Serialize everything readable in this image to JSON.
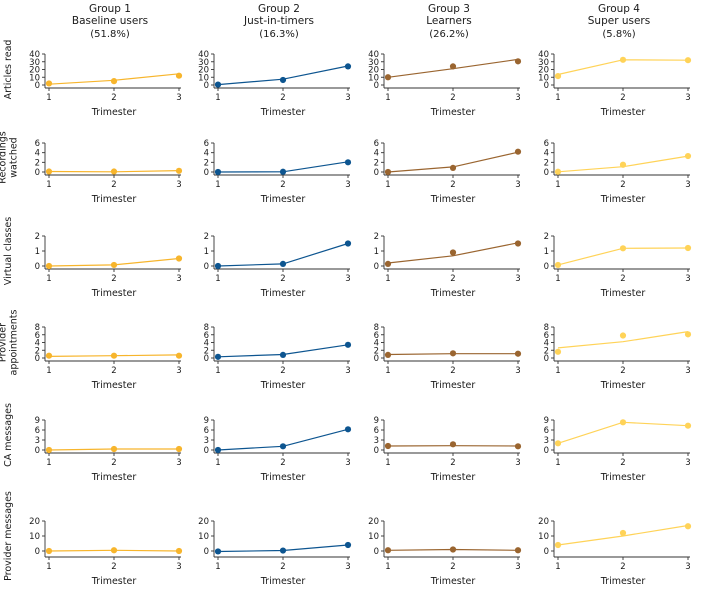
{
  "chart_data": {
    "type": "line",
    "layout": "small-multiples grid (6 metric rows x 4 group columns)",
    "x": [
      "1",
      "2",
      "3"
    ],
    "xlabel": "Trimester",
    "groups": [
      {
        "title": "Group 1",
        "subtitle": "Baseline users",
        "share": "(51.8%)",
        "color": "#F7B52C"
      },
      {
        "title": "Group 2",
        "subtitle": "Just-in-timers",
        "share": "(16.3%)",
        "color": "#0D5590"
      },
      {
        "title": "Group 3",
        "subtitle": "Learners",
        "share": "(26.2%)",
        "color": "#9A6530"
      },
      {
        "title": "Group 4",
        "subtitle": "Super users",
        "share": "(5.8%)",
        "color": "#FFD358"
      }
    ],
    "metrics": [
      {
        "label_lines": [
          "Articles read"
        ],
        "ylim": [
          0,
          40
        ],
        "yticks": [
          "0",
          "10",
          "20",
          "30",
          "40"
        ],
        "points": [
          [
            2,
            5,
            12
          ],
          [
            0.5,
            6.5,
            24
          ],
          [
            10,
            24,
            30.5
          ],
          [
            11.5,
            32.5,
            32
          ]
        ],
        "fits": [
          [
            1,
            6,
            14.5
          ],
          [
            0.5,
            7.5,
            24.5
          ],
          [
            10,
            21,
            33
          ],
          [
            13.5,
            32.5,
            32
          ]
        ]
      },
      {
        "label_lines": [
          "Recordings",
          "watched"
        ],
        "ylim": [
          0,
          6
        ],
        "yticks": [
          "0",
          "2",
          "4",
          "6"
        ],
        "points": [
          [
            0.1,
            0.1,
            0.25
          ],
          [
            0,
            0.05,
            2
          ],
          [
            0,
            0.85,
            4.2
          ],
          [
            0.05,
            1.5,
            3.3
          ]
        ],
        "fits": [
          [
            0.1,
            0.05,
            0.3
          ],
          [
            0,
            0.05,
            2.1
          ],
          [
            0,
            1.05,
            4.1
          ],
          [
            0.05,
            1.1,
            3.3
          ]
        ]
      },
      {
        "label_lines": [
          "Virtual classes"
        ],
        "ylim": [
          0,
          2
        ],
        "yticks": [
          "0",
          "1",
          "2"
        ],
        "points": [
          [
            0,
            0.07,
            0.5
          ],
          [
            0,
            0.14,
            1.5
          ],
          [
            0.14,
            0.9,
            1.5
          ],
          [
            0.07,
            1.18,
            1.2
          ]
        ],
        "fits": [
          [
            0,
            0.07,
            0.5
          ],
          [
            0,
            0.14,
            1.5
          ],
          [
            0.2,
            0.68,
            1.55
          ],
          [
            0.07,
            1.18,
            1.2
          ]
        ]
      },
      {
        "label_lines": [
          "Provider",
          "appointments"
        ],
        "ylim": [
          0,
          8
        ],
        "yticks": [
          "0",
          "2",
          "4",
          "6",
          "8"
        ],
        "points": [
          [
            0.6,
            0.6,
            0.6
          ],
          [
            0.3,
            0.8,
            3.4
          ],
          [
            0.8,
            1.2,
            1.1
          ],
          [
            1.6,
            5.8,
            6.1
          ]
        ],
        "fits": [
          [
            0.4,
            0.6,
            0.8
          ],
          [
            0.3,
            0.9,
            3.4
          ],
          [
            0.9,
            1.1,
            1.1
          ],
          [
            2.6,
            4.2,
            6.8
          ]
        ]
      },
      {
        "label_lines": [
          "CA messages"
        ],
        "ylim": [
          0,
          9
        ],
        "yticks": [
          "0",
          "3",
          "6",
          "9"
        ],
        "points": [
          [
            0,
            0.3,
            0.3
          ],
          [
            0,
            1.1,
            6.2
          ],
          [
            1.2,
            1.7,
            1.1
          ],
          [
            2.0,
            8.3,
            7.3
          ]
        ],
        "fits": [
          [
            0,
            0.3,
            0.3
          ],
          [
            0,
            1.1,
            6.2
          ],
          [
            1.2,
            1.3,
            1.2
          ],
          [
            2.0,
            8.3,
            7.3
          ]
        ]
      },
      {
        "label_lines": [
          "Provider messages"
        ],
        "ylim": [
          0,
          20
        ],
        "yticks": [
          "0",
          "10",
          "20"
        ],
        "points": [
          [
            0,
            0.5,
            0
          ],
          [
            -0.3,
            0.3,
            4
          ],
          [
            0.5,
            1,
            0.5
          ],
          [
            4,
            12,
            16.5
          ]
        ],
        "fits": [
          [
            0,
            0.5,
            0
          ],
          [
            -0.3,
            0.3,
            4
          ],
          [
            0.5,
            1,
            0.5
          ],
          [
            4,
            10,
            17
          ]
        ]
      }
    ]
  }
}
